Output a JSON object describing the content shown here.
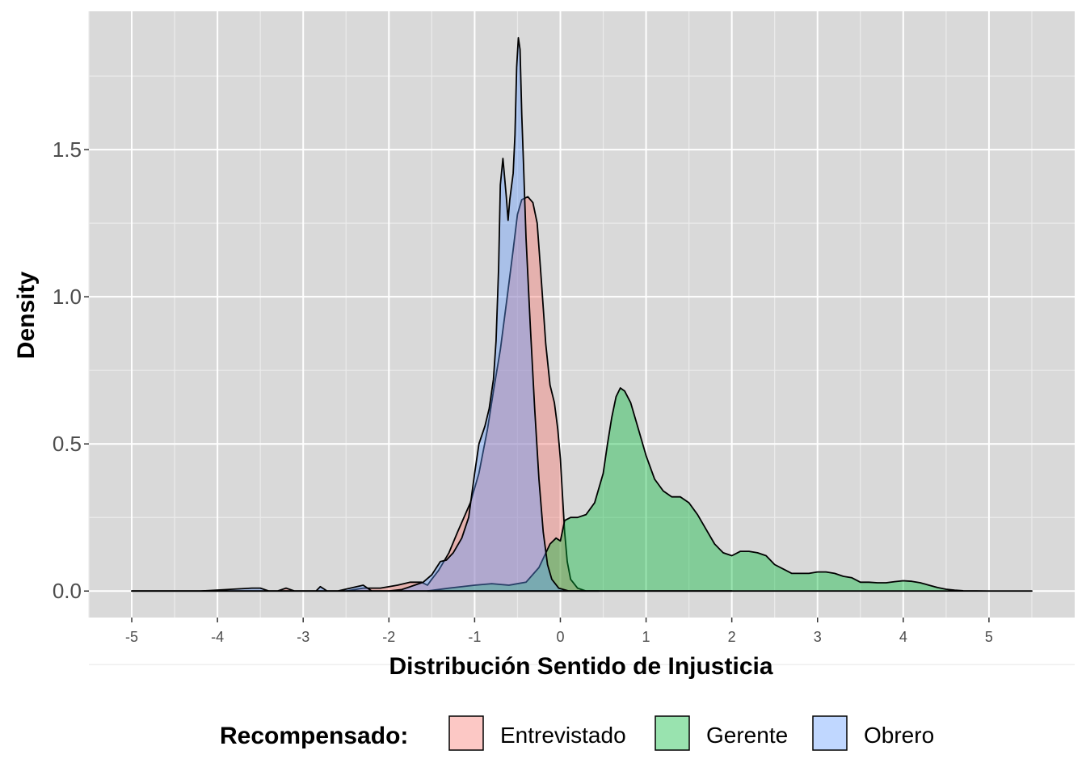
{
  "chart_data": {
    "type": "area",
    "subtype": "density",
    "title": "",
    "xlabel": "Distribución Sentido de Injusticia",
    "ylabel": "Density",
    "xlim": [
      -5.5,
      6.0
    ],
    "ylim": [
      -0.09,
      1.97
    ],
    "x_ticks": [
      -5,
      -4,
      -3,
      -2,
      -1,
      0,
      1,
      2,
      3,
      4,
      5
    ],
    "x_tick_labels": [
      "-5",
      "-4",
      "-3",
      "-2",
      "-1",
      "0",
      "1",
      "2",
      "3",
      "4",
      "5"
    ],
    "y_ticks": [
      0.0,
      0.5,
      1.0,
      1.5
    ],
    "y_tick_labels": [
      "0.0",
      "0.5",
      "1.0",
      "1.5"
    ],
    "grid": true,
    "legend": {
      "title": "Recompensado:",
      "position": "bottom",
      "entries": [
        "Entrevistado",
        "Gerente",
        "Obrero"
      ]
    },
    "fill_opacity": 0.4,
    "series": [
      {
        "name": "Entrevistado",
        "color": "#F8766D",
        "points": [
          [
            -5.0,
            0.0
          ],
          [
            -4.2,
            0.0
          ],
          [
            -3.3,
            0.0
          ],
          [
            -3.2,
            0.01
          ],
          [
            -3.1,
            0.0
          ],
          [
            -2.5,
            0.0
          ],
          [
            -2.3,
            0.01
          ],
          [
            -2.1,
            0.01
          ],
          [
            -1.9,
            0.02
          ],
          [
            -1.75,
            0.03
          ],
          [
            -1.62,
            0.03
          ],
          [
            -1.55,
            0.02
          ],
          [
            -1.5,
            0.04
          ],
          [
            -1.42,
            0.07
          ],
          [
            -1.3,
            0.13
          ],
          [
            -1.2,
            0.2
          ],
          [
            -1.05,
            0.3
          ],
          [
            -0.95,
            0.4
          ],
          [
            -0.85,
            0.55
          ],
          [
            -0.78,
            0.68
          ],
          [
            -0.7,
            0.82
          ],
          [
            -0.62,
            1.0
          ],
          [
            -0.55,
            1.16
          ],
          [
            -0.5,
            1.28
          ],
          [
            -0.45,
            1.33
          ],
          [
            -0.38,
            1.34
          ],
          [
            -0.32,
            1.32
          ],
          [
            -0.27,
            1.25
          ],
          [
            -0.22,
            1.05
          ],
          [
            -0.17,
            0.84
          ],
          [
            -0.12,
            0.7
          ],
          [
            -0.07,
            0.64
          ],
          [
            -0.03,
            0.55
          ],
          [
            0.0,
            0.45
          ],
          [
            0.02,
            0.35
          ],
          [
            0.05,
            0.2
          ],
          [
            0.08,
            0.1
          ],
          [
            0.12,
            0.04
          ],
          [
            0.2,
            0.01
          ],
          [
            0.3,
            0.0
          ],
          [
            0.45,
            0.0
          ]
        ]
      },
      {
        "name": "Gerente",
        "color": "#00BA38",
        "points": [
          [
            -1.55,
            0.0
          ],
          [
            -1.3,
            0.01
          ],
          [
            -1.0,
            0.02
          ],
          [
            -0.8,
            0.025
          ],
          [
            -0.6,
            0.02
          ],
          [
            -0.4,
            0.03
          ],
          [
            -0.25,
            0.08
          ],
          [
            -0.12,
            0.16
          ],
          [
            -0.05,
            0.18
          ],
          [
            0.0,
            0.17
          ],
          [
            0.05,
            0.24
          ],
          [
            0.12,
            0.25
          ],
          [
            0.2,
            0.25
          ],
          [
            0.3,
            0.26
          ],
          [
            0.4,
            0.3
          ],
          [
            0.5,
            0.4
          ],
          [
            0.55,
            0.5
          ],
          [
            0.6,
            0.59
          ],
          [
            0.65,
            0.66
          ],
          [
            0.7,
            0.69
          ],
          [
            0.75,
            0.68
          ],
          [
            0.82,
            0.64
          ],
          [
            0.9,
            0.56
          ],
          [
            1.0,
            0.46
          ],
          [
            1.1,
            0.38
          ],
          [
            1.2,
            0.34
          ],
          [
            1.3,
            0.32
          ],
          [
            1.4,
            0.32
          ],
          [
            1.5,
            0.3
          ],
          [
            1.6,
            0.26
          ],
          [
            1.7,
            0.21
          ],
          [
            1.8,
            0.16
          ],
          [
            1.9,
            0.13
          ],
          [
            2.0,
            0.12
          ],
          [
            2.1,
            0.135
          ],
          [
            2.2,
            0.135
          ],
          [
            2.3,
            0.13
          ],
          [
            2.4,
            0.12
          ],
          [
            2.5,
            0.09
          ],
          [
            2.6,
            0.075
          ],
          [
            2.7,
            0.06
          ],
          [
            2.8,
            0.06
          ],
          [
            2.9,
            0.06
          ],
          [
            3.0,
            0.065
          ],
          [
            3.1,
            0.065
          ],
          [
            3.2,
            0.06
          ],
          [
            3.3,
            0.05
          ],
          [
            3.4,
            0.045
          ],
          [
            3.5,
            0.03
          ],
          [
            3.6,
            0.03
          ],
          [
            3.7,
            0.028
          ],
          [
            3.8,
            0.028
          ],
          [
            3.9,
            0.032
          ],
          [
            4.0,
            0.035
          ],
          [
            4.1,
            0.033
          ],
          [
            4.2,
            0.028
          ],
          [
            4.3,
            0.02
          ],
          [
            4.4,
            0.012
          ],
          [
            4.5,
            0.006
          ],
          [
            4.6,
            0.003
          ],
          [
            4.7,
            0.001
          ],
          [
            5.0,
            0.0
          ],
          [
            5.3,
            0.0
          ],
          [
            5.5,
            0.0
          ]
        ]
      },
      {
        "name": "Obrero",
        "color": "#619CFF",
        "points": [
          [
            -5.0,
            0.0
          ],
          [
            -4.2,
            0.0
          ],
          [
            -3.6,
            0.01
          ],
          [
            -3.5,
            0.01
          ],
          [
            -3.4,
            0.0
          ],
          [
            -2.85,
            0.0
          ],
          [
            -2.8,
            0.015
          ],
          [
            -2.72,
            0.0
          ],
          [
            -2.6,
            0.0
          ],
          [
            -2.3,
            0.02
          ],
          [
            -2.2,
            0.0
          ],
          [
            -2.0,
            0.0
          ],
          [
            -1.85,
            0.005
          ],
          [
            -1.7,
            0.02
          ],
          [
            -1.6,
            0.03
          ],
          [
            -1.5,
            0.055
          ],
          [
            -1.4,
            0.1
          ],
          [
            -1.33,
            0.105
          ],
          [
            -1.25,
            0.13
          ],
          [
            -1.15,
            0.18
          ],
          [
            -1.07,
            0.25
          ],
          [
            -1.0,
            0.4
          ],
          [
            -0.95,
            0.5
          ],
          [
            -0.88,
            0.56
          ],
          [
            -0.83,
            0.62
          ],
          [
            -0.78,
            0.72
          ],
          [
            -0.75,
            0.85
          ],
          [
            -0.72,
            1.1
          ],
          [
            -0.7,
            1.38
          ],
          [
            -0.67,
            1.47
          ],
          [
            -0.63,
            1.34
          ],
          [
            -0.61,
            1.26
          ],
          [
            -0.59,
            1.33
          ],
          [
            -0.55,
            1.42
          ],
          [
            -0.53,
            1.55
          ],
          [
            -0.51,
            1.78
          ],
          [
            -0.49,
            1.88
          ],
          [
            -0.47,
            1.84
          ],
          [
            -0.45,
            1.62
          ],
          [
            -0.43,
            1.45
          ],
          [
            -0.4,
            1.2
          ],
          [
            -0.35,
            0.9
          ],
          [
            -0.3,
            0.62
          ],
          [
            -0.25,
            0.38
          ],
          [
            -0.2,
            0.2
          ],
          [
            -0.15,
            0.09
          ],
          [
            -0.1,
            0.04
          ],
          [
            -0.02,
            0.01
          ],
          [
            0.1,
            0.0
          ],
          [
            0.8,
            0.0
          ],
          [
            1.7,
            0.0
          ],
          [
            2.0,
            0.0
          ]
        ]
      }
    ]
  }
}
